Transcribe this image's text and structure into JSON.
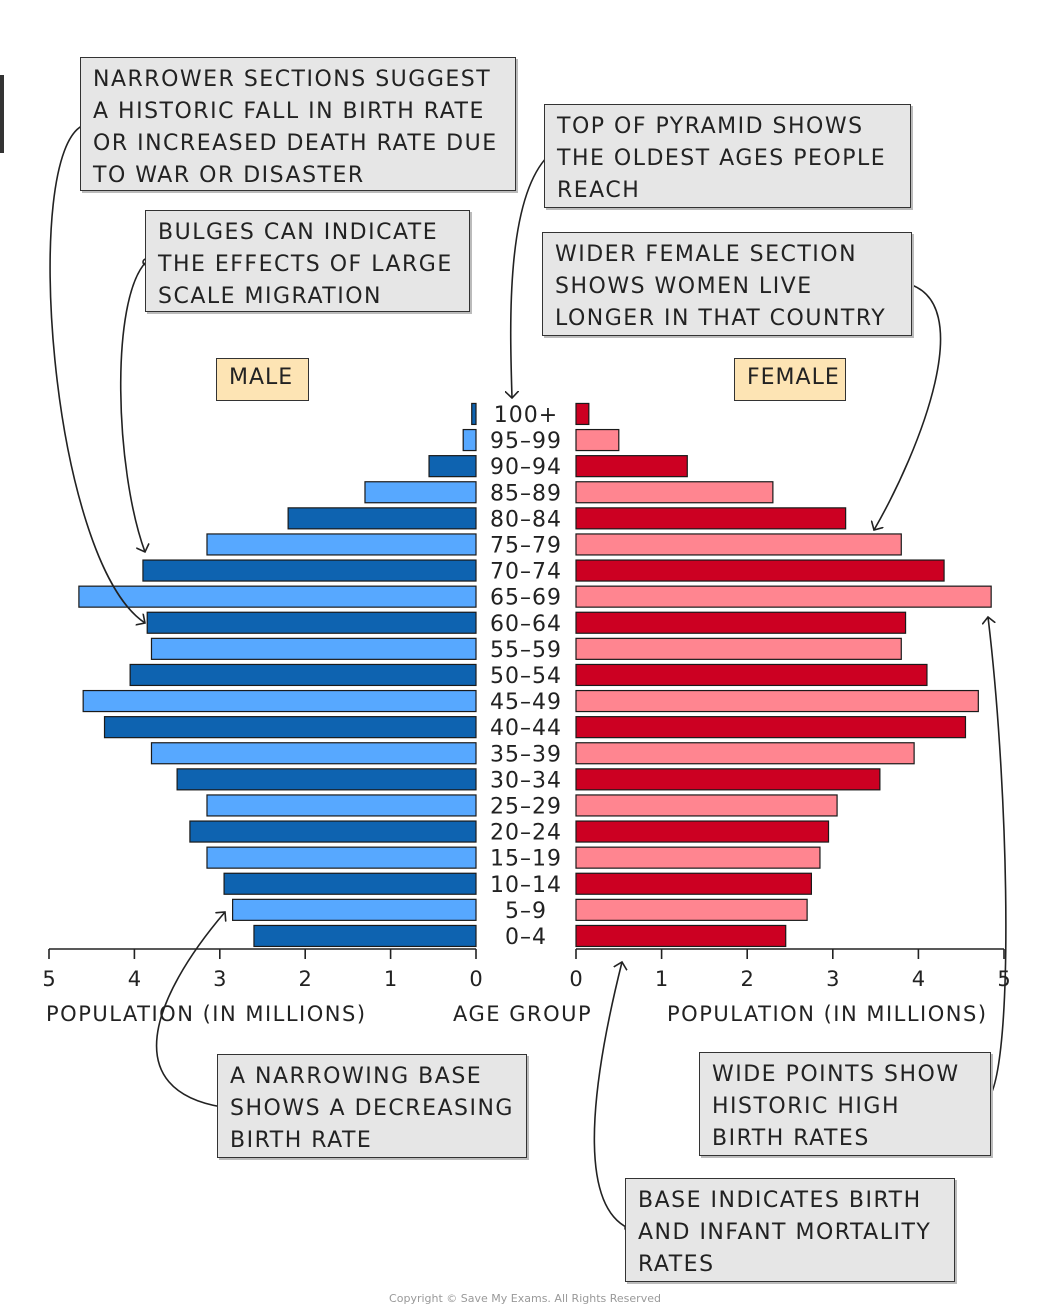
{
  "chart_data": {
    "type": "population-pyramid",
    "categories": [
      "0-4",
      "5-9",
      "10-14",
      "15-19",
      "20-24",
      "25-29",
      "30-34",
      "35-39",
      "40-44",
      "45-49",
      "50-54",
      "55-59",
      "60-64",
      "65-69",
      "70-74",
      "75-79",
      "80-84",
      "85-89",
      "90-94",
      "95-99",
      "100+"
    ],
    "category_labels": [
      "0–4",
      "5–9",
      "10–14",
      "15–19",
      "20–24",
      "25–29",
      "30–34",
      "35–39",
      "40–44",
      "45–49",
      "50–54",
      "55–59",
      "60–64",
      "65–69",
      "70–74",
      "75–79",
      "80–84",
      "85–89",
      "90–94",
      "95–99",
      "100+"
    ],
    "series": [
      {
        "name": "MALE",
        "values": [
          2.6,
          2.85,
          2.95,
          3.15,
          3.35,
          3.15,
          3.5,
          3.8,
          4.35,
          4.6,
          4.05,
          3.8,
          3.85,
          4.65,
          3.9,
          3.15,
          2.2,
          1.3,
          0.55,
          0.15,
          0.05
        ]
      },
      {
        "name": "FEMALE",
        "values": [
          2.45,
          2.7,
          2.75,
          2.85,
          2.95,
          3.05,
          3.55,
          3.95,
          4.55,
          4.7,
          4.1,
          3.8,
          3.85,
          4.85,
          4.3,
          3.8,
          3.15,
          2.3,
          1.3,
          0.5,
          0.15
        ]
      }
    ],
    "xlim": [
      0,
      5
    ],
    "x_ticks": [
      "5",
      "4",
      "3",
      "2",
      "1",
      "0"
    ],
    "x_ticks_right": [
      "0",
      "1",
      "2",
      "3",
      "4",
      "5"
    ],
    "xlabel_left": "POPULATION (IN MILLIONS)",
    "xlabel_center": "AGE GROUP",
    "xlabel_right": "POPULATION (IN MILLIONS)",
    "colors": {
      "male_dark": "#0e63b0",
      "male_light": "#57a8ff",
      "female_dark": "#cc0022",
      "female_light": "#ff8590"
    }
  },
  "labels": {
    "male": "MALE",
    "female": "FEMALE"
  },
  "callouts": {
    "narrower": "NARROWER SECTIONS SUGGEST A HISTORIC FALL IN BIRTH RATE OR INCREASED DEATH RATE DUE TO WAR OR DISASTER",
    "bulges": "BULGES CAN INDICATE THE EFFECTS OF LARGE SCALE MIGRATION",
    "top": "TOP OF PYRAMID SHOWS THE OLDEST AGES PEOPLE REACH",
    "wider_female": "WIDER FEMALE SECTION SHOWS WOMEN LIVE LONGER IN THAT COUNTRY",
    "narrowing_base": "A NARROWING BASE SHOWS A DECREASING BIRTH RATE",
    "wide_points": "WIDE POINTS SHOW HISTORIC HIGH BIRTH RATES",
    "base_indicates": "BASE INDICATES BIRTH AND INFANT MORTALITY RATES"
  },
  "copyright": "Copyright © Save My Exams. All Rights Reserved"
}
